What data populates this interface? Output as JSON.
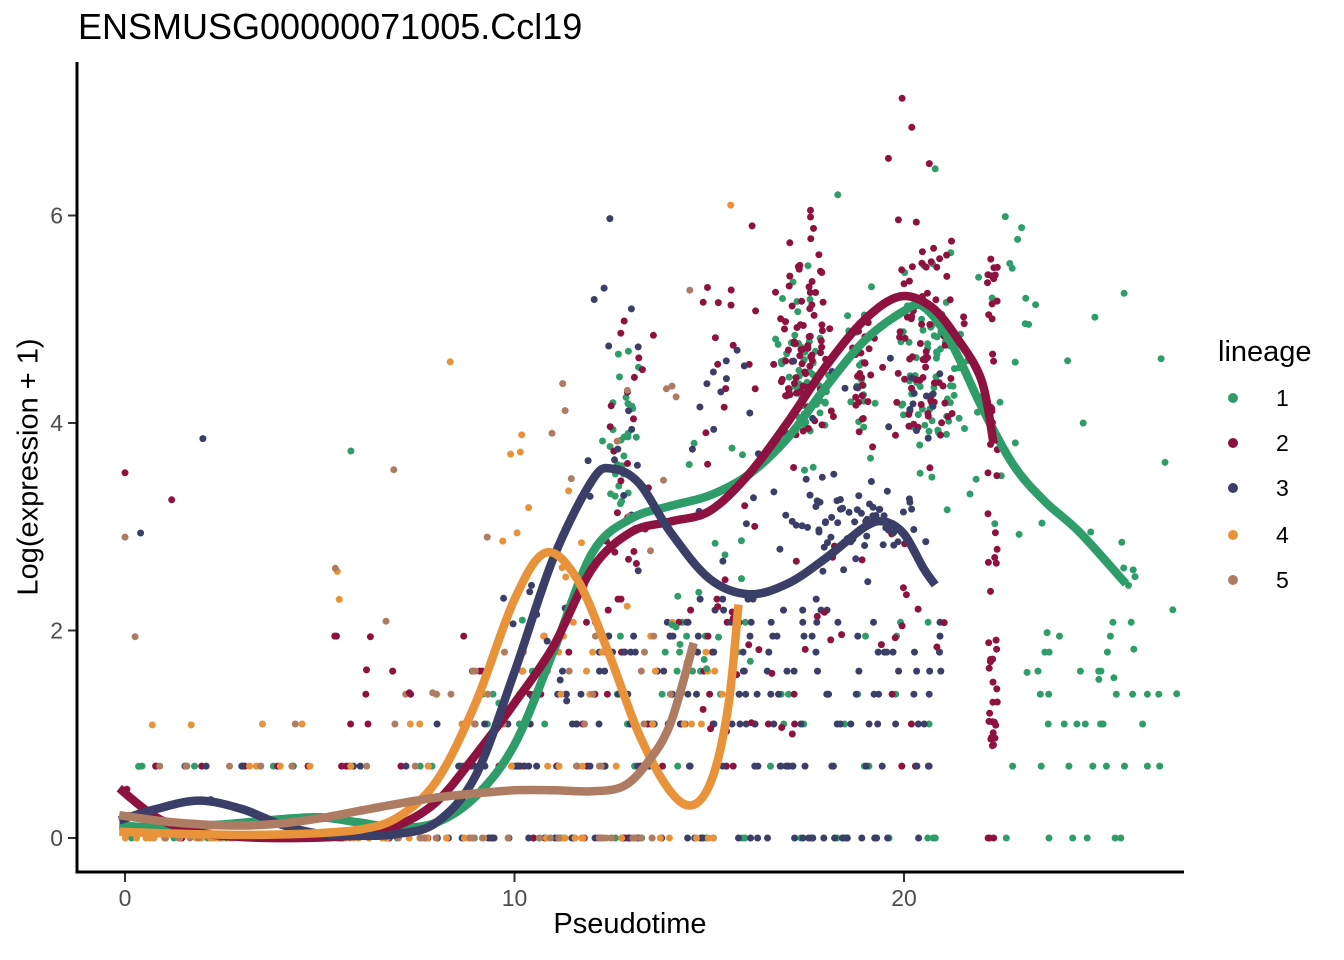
{
  "chart_data": {
    "type": "scatter",
    "title": "ENSMUSG00000071005.Ccl19",
    "xlabel": "Pseudotime",
    "ylabel": "Log(expression + 1)",
    "x_ticks": [
      0,
      10,
      20
    ],
    "y_ticks": [
      0,
      2,
      4,
      6
    ],
    "xlim": [
      -1.2,
      27.2
    ],
    "ylim": [
      -0.33,
      7.48
    ],
    "grid": false,
    "background": "#ffffff",
    "legend": {
      "title": "lineage",
      "position": "right",
      "items": [
        {
          "label": "1",
          "color": "#2f9d69"
        },
        {
          "label": "2",
          "color": "#8e123f"
        },
        {
          "label": "3",
          "color": "#3b3f67"
        },
        {
          "label": "4",
          "color": "#e8923a"
        },
        {
          "label": "5",
          "color": "#ae7c63"
        }
      ]
    },
    "curves": [
      {
        "lineage": 1,
        "color": "#2f9d69",
        "points": [
          [
            -0.15,
            0.12
          ],
          [
            1,
            0.1
          ],
          [
            2.5,
            0.13
          ],
          [
            4,
            0.18
          ],
          [
            5,
            0.2
          ],
          [
            6,
            0.15
          ],
          [
            7,
            0.1
          ],
          [
            8,
            0.15
          ],
          [
            9,
            0.4
          ],
          [
            10,
            0.9
          ],
          [
            11,
            1.8
          ],
          [
            12,
            2.75
          ],
          [
            13,
            3.08
          ],
          [
            14,
            3.2
          ],
          [
            15,
            3.3
          ],
          [
            16,
            3.5
          ],
          [
            17,
            3.85
          ],
          [
            18,
            4.35
          ],
          [
            19,
            4.8
          ],
          [
            20,
            5.08
          ],
          [
            20.5,
            5.12
          ],
          [
            21.2,
            4.78
          ],
          [
            22,
            4.15
          ],
          [
            22.8,
            3.6
          ],
          [
            23.6,
            3.25
          ],
          [
            24.5,
            2.95
          ],
          [
            25.7,
            2.45
          ]
        ]
      },
      {
        "lineage": 2,
        "color": "#8e123f",
        "points": [
          [
            -0.15,
            0.48
          ],
          [
            0.8,
            0.2
          ],
          [
            1.8,
            0.06
          ],
          [
            3,
            0.01
          ],
          [
            4.5,
            0.0
          ],
          [
            6,
            0.03
          ],
          [
            7,
            0.12
          ],
          [
            8,
            0.35
          ],
          [
            9,
            0.8
          ],
          [
            10,
            1.3
          ],
          [
            11,
            1.85
          ],
          [
            12,
            2.6
          ],
          [
            13,
            2.95
          ],
          [
            14,
            3.05
          ],
          [
            15,
            3.15
          ],
          [
            16,
            3.5
          ],
          [
            17,
            4.0
          ],
          [
            18,
            4.55
          ],
          [
            19,
            5.0
          ],
          [
            19.9,
            5.22
          ],
          [
            20.7,
            5.12
          ],
          [
            21.4,
            4.8
          ],
          [
            22,
            4.4
          ],
          [
            22.3,
            3.8
          ]
        ]
      },
      {
        "lineage": 3,
        "color": "#3b3f67",
        "points": [
          [
            -0.15,
            0.17
          ],
          [
            0.8,
            0.28
          ],
          [
            1.9,
            0.36
          ],
          [
            3,
            0.28
          ],
          [
            4,
            0.13
          ],
          [
            5,
            0.04
          ],
          [
            6,
            0.02
          ],
          [
            7,
            0.04
          ],
          [
            8,
            0.15
          ],
          [
            9,
            0.6
          ],
          [
            10,
            1.6
          ],
          [
            11,
            2.7
          ],
          [
            12,
            3.45
          ],
          [
            12.5,
            3.56
          ],
          [
            13.2,
            3.42
          ],
          [
            14,
            2.95
          ],
          [
            15,
            2.5
          ],
          [
            16,
            2.35
          ],
          [
            17,
            2.45
          ],
          [
            18,
            2.7
          ],
          [
            19,
            3.0
          ],
          [
            19.5,
            3.05
          ],
          [
            20,
            2.93
          ],
          [
            20.5,
            2.6
          ],
          [
            20.8,
            2.44
          ]
        ]
      },
      {
        "lineage": 4,
        "color": "#e8923a",
        "points": [
          [
            -0.15,
            0.06
          ],
          [
            1.5,
            0.04
          ],
          [
            3,
            0.03
          ],
          [
            4.5,
            0.04
          ],
          [
            6,
            0.08
          ],
          [
            7,
            0.2
          ],
          [
            8,
            0.55
          ],
          [
            9,
            1.3
          ],
          [
            10,
            2.3
          ],
          [
            10.8,
            2.75
          ],
          [
            11.6,
            2.5
          ],
          [
            12.4,
            1.8
          ],
          [
            13.2,
            1.0
          ],
          [
            14,
            0.45
          ],
          [
            14.6,
            0.32
          ],
          [
            15.1,
            0.6
          ],
          [
            15.5,
            1.3
          ],
          [
            15.75,
            2.25
          ]
        ]
      },
      {
        "lineage": 5,
        "color": "#ae7c63",
        "points": [
          [
            -0.15,
            0.22
          ],
          [
            1,
            0.16
          ],
          [
            2,
            0.13
          ],
          [
            3,
            0.12
          ],
          [
            4,
            0.14
          ],
          [
            5,
            0.19
          ],
          [
            6,
            0.26
          ],
          [
            7,
            0.33
          ],
          [
            8,
            0.39
          ],
          [
            9,
            0.43
          ],
          [
            10,
            0.46
          ],
          [
            11,
            0.46
          ],
          [
            12,
            0.45
          ],
          [
            12.8,
            0.5
          ],
          [
            13.4,
            0.72
          ],
          [
            14,
            1.1
          ],
          [
            14.6,
            1.88
          ]
        ]
      }
    ],
    "expression_bands": [
      0,
      0.693,
      1.099,
      1.386,
      1.609,
      1.792,
      1.946,
      2.079,
      2.197,
      2.303
    ],
    "scatter_density_rows": [
      [
        1,
        0,
        0,
        6,
        7
      ],
      [
        1,
        0,
        6,
        16,
        14
      ],
      [
        1,
        0,
        16.3,
        21,
        8
      ],
      [
        1,
        0,
        22.5,
        26.5,
        6
      ],
      [
        1,
        0.693,
        0.3,
        3,
        3
      ],
      [
        1,
        0.693,
        3,
        16,
        10
      ],
      [
        1,
        0.693,
        16.5,
        21,
        5
      ],
      [
        1,
        0.693,
        22.5,
        26.8,
        8
      ],
      [
        1,
        1.099,
        7,
        16,
        7
      ],
      [
        1,
        1.099,
        16.5,
        21,
        4
      ],
      [
        1,
        1.099,
        23,
        26.8,
        7
      ],
      [
        1,
        1.386,
        9,
        16,
        6
      ],
      [
        1,
        1.386,
        16.5,
        21,
        4
      ],
      [
        1,
        1.386,
        23,
        26.8,
        6
      ],
      [
        1,
        1.609,
        10,
        16,
        4
      ],
      [
        1,
        1.609,
        23,
        26.5,
        4
      ],
      [
        1,
        1.792,
        11,
        16,
        4
      ],
      [
        1,
        1.792,
        23.5,
        26,
        3
      ],
      [
        1,
        1.946,
        12,
        16,
        3
      ],
      [
        1,
        1.946,
        17,
        21,
        2
      ],
      [
        1,
        1.946,
        23.5,
        26,
        2
      ],
      [
        1,
        2.079,
        12,
        16,
        2
      ],
      [
        1,
        2.079,
        17,
        21,
        2
      ],
      [
        1,
        2.079,
        24,
        26,
        2
      ],
      [
        2,
        0,
        0,
        8,
        10
      ],
      [
        2,
        0,
        8,
        14,
        8
      ],
      [
        2,
        0,
        22.15,
        22.4,
        3
      ],
      [
        2,
        0.693,
        0.4,
        9,
        12
      ],
      [
        2,
        0.693,
        9,
        16,
        10
      ],
      [
        2,
        0.693,
        16.5,
        21,
        4
      ],
      [
        2,
        1.099,
        4,
        16,
        10
      ],
      [
        2,
        1.099,
        16.5,
        21,
        3
      ],
      [
        2,
        1.386,
        5,
        16,
        8
      ],
      [
        2,
        1.386,
        16.5,
        21,
        3
      ],
      [
        2,
        1.609,
        5,
        16,
        6
      ],
      [
        2,
        1.792,
        9,
        16,
        5
      ],
      [
        2,
        1.946,
        4.2,
        16,
        6
      ],
      [
        2,
        2.079,
        10,
        16,
        4
      ],
      [
        2,
        2.197,
        11,
        16,
        3
      ],
      [
        2,
        2.303,
        12,
        16,
        3
      ],
      [
        3,
        0,
        3,
        8,
        8
      ],
      [
        3,
        0,
        8,
        16,
        30
      ],
      [
        3,
        0,
        16,
        20.6,
        22
      ],
      [
        3,
        0.693,
        1.5,
        8,
        6
      ],
      [
        3,
        0.693,
        8,
        16,
        26
      ],
      [
        3,
        0.693,
        16,
        20.8,
        14
      ],
      [
        3,
        1.099,
        8,
        16,
        16
      ],
      [
        3,
        1.099,
        16,
        20.8,
        12
      ],
      [
        3,
        1.386,
        9.5,
        16,
        12
      ],
      [
        3,
        1.386,
        16,
        20.8,
        10
      ],
      [
        3,
        1.609,
        10,
        16,
        10
      ],
      [
        3,
        1.609,
        16,
        21,
        9
      ],
      [
        3,
        1.792,
        11,
        16,
        8
      ],
      [
        3,
        1.792,
        16,
        21,
        8
      ],
      [
        3,
        1.946,
        12,
        16,
        6
      ],
      [
        3,
        1.946,
        16,
        21,
        7
      ],
      [
        3,
        2.079,
        13,
        16,
        5
      ],
      [
        3,
        2.079,
        16,
        21,
        7
      ],
      [
        3,
        2.197,
        14,
        21,
        6
      ],
      [
        3,
        2.303,
        14,
        21,
        5
      ],
      [
        4,
        0,
        0,
        6,
        35
      ],
      [
        4,
        0,
        6,
        15.8,
        30
      ],
      [
        4,
        0.693,
        0.3,
        15,
        12
      ],
      [
        4,
        1.099,
        0.5,
        15.5,
        10
      ],
      [
        4,
        1.386,
        8,
        15.5,
        7
      ],
      [
        4,
        1.609,
        9,
        15.5,
        6
      ],
      [
        4,
        1.792,
        10,
        15,
        4
      ],
      [
        4,
        1.946,
        10,
        15.5,
        3
      ],
      [
        4,
        2.079,
        11,
        15.5,
        2
      ],
      [
        5,
        0,
        0,
        6,
        15
      ],
      [
        5,
        0,
        6,
        14.6,
        20
      ],
      [
        5,
        0.693,
        0,
        14.6,
        12
      ],
      [
        5,
        1.099,
        4,
        14.6,
        8
      ],
      [
        5,
        1.386,
        6,
        14.6,
        6
      ],
      [
        5,
        1.609,
        7,
        14.6,
        5
      ],
      [
        5,
        1.792,
        9,
        14.6,
        3
      ],
      [
        5,
        1.946,
        9,
        14.6,
        2
      ]
    ],
    "scatter_density_boxes": [
      [
        1,
        12.1,
        13.4,
        2.4,
        5.0,
        30,
        1
      ],
      [
        1,
        13.5,
        16.2,
        1.6,
        3.9,
        20,
        0
      ],
      [
        1,
        16.4,
        18.6,
        2.8,
        5.9,
        60,
        1
      ],
      [
        1,
        18.4,
        19.5,
        3.2,
        5.6,
        20,
        1
      ],
      [
        1,
        19.3,
        21.9,
        2.9,
        6.0,
        65,
        1
      ],
      [
        1,
        21.8,
        23.4,
        4.2,
        6.0,
        12,
        0
      ],
      [
        1,
        21.5,
        23.0,
        2.8,
        4.4,
        10,
        0
      ],
      [
        1,
        22.6,
        27.0,
        1.5,
        3.1,
        12,
        0
      ],
      [
        2,
        12.2,
        13.6,
        2.4,
        5.15,
        22,
        0
      ],
      [
        2,
        14.8,
        16.3,
        0.9,
        5.6,
        30,
        0
      ],
      [
        2,
        16.4,
        18.6,
        3.2,
        6.2,
        85,
        1
      ],
      [
        2,
        18.4,
        19.4,
        3.4,
        5.6,
        25,
        1
      ],
      [
        2,
        19.2,
        21.8,
        3.3,
        6.3,
        85,
        1
      ],
      [
        2,
        16.5,
        21.5,
        0.9,
        3.1,
        22,
        0
      ],
      [
        2,
        22.14,
        22.4,
        0.65,
        5.65,
        52,
        0
      ],
      [
        3,
        11.6,
        13.4,
        2.5,
        5.4,
        16,
        0
      ],
      [
        3,
        9.5,
        11.5,
        1.2,
        2.5,
        10,
        0
      ],
      [
        3,
        14.5,
        16.3,
        2.5,
        4.75,
        14,
        0
      ],
      [
        3,
        16.3,
        21.2,
        2.4,
        3.7,
        70,
        1
      ],
      [
        3,
        17,
        21,
        3.7,
        4.65,
        18,
        0
      ],
      [
        4,
        9.3,
        13.2,
        2.2,
        3.9,
        10,
        0
      ],
      [
        5,
        10.5,
        14.6,
        2.2,
        4.5,
        10,
        0
      ]
    ],
    "scatter_points_extra": [
      [
        1,
        [
          [
            5.8,
            3.73
          ],
          [
            0.35,
            0.69
          ],
          [
            23.2,
            4.95
          ],
          [
            24.2,
            4.6
          ],
          [
            24.9,
            5.02
          ],
          [
            25.65,
            5.25
          ],
          [
            26.6,
            4.62
          ],
          [
            24.6,
            4.0
          ],
          [
            26.7,
            3.62
          ],
          [
            26.9,
            2.2
          ],
          [
            25.9,
            1.82
          ],
          [
            27.0,
            1.39
          ],
          [
            10.2,
            2.1
          ],
          [
            9.6,
            1.3
          ],
          [
            20.8,
            6.45
          ],
          [
            18.3,
            6.2
          ]
        ]
      ],
      [
        2,
        [
          [
            0,
            3.52
          ],
          [
            1.2,
            3.26
          ],
          [
            0.05,
            0.47
          ],
          [
            19.95,
            7.13
          ],
          [
            20.2,
            6.85
          ],
          [
            19.6,
            6.55
          ],
          [
            20.65,
            6.5
          ],
          [
            17.6,
            6.05
          ],
          [
            16.1,
            5.9
          ],
          [
            6.3,
            1.94
          ],
          [
            6.2,
            1.62
          ],
          [
            7.3,
            1.4
          ]
        ]
      ],
      [
        3,
        [
          [
            12.45,
            5.97
          ],
          [
            2.0,
            3.85
          ],
          [
            0.4,
            2.94
          ],
          [
            2.2,
            0.37
          ],
          [
            12.3,
            5.3
          ],
          [
            15.9,
            4.55
          ],
          [
            15.3,
            4.3
          ],
          [
            13.0,
            5.1
          ]
        ]
      ],
      [
        4,
        [
          [
            8.35,
            4.59
          ],
          [
            15.55,
            6.1
          ],
          [
            5.45,
            2.57
          ],
          [
            5.5,
            2.3
          ],
          [
            9.9,
            3.7
          ],
          [
            10.15,
            3.72
          ],
          [
            1.7,
            1.09
          ],
          [
            0.7,
            1.09
          ]
        ]
      ],
      [
        5,
        [
          [
            0,
            2.9
          ],
          [
            0.26,
            1.94
          ],
          [
            6.9,
            3.55
          ],
          [
            14.5,
            5.28
          ],
          [
            13.9,
            4.33
          ],
          [
            11.3,
            4.12
          ],
          [
            5.4,
            2.6
          ],
          [
            6.7,
            2.09
          ],
          [
            7.9,
            1.4
          ],
          [
            9.3,
            2.9
          ],
          [
            0.1,
            0.22
          ]
        ]
      ]
    ]
  }
}
